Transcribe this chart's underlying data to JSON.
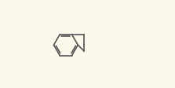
{
  "bg_color": "#fdf8ec",
  "line_color": "#555555",
  "line_width": 1.2,
  "figsize": [
    2.23,
    1.13
  ],
  "dpi": 100
}
